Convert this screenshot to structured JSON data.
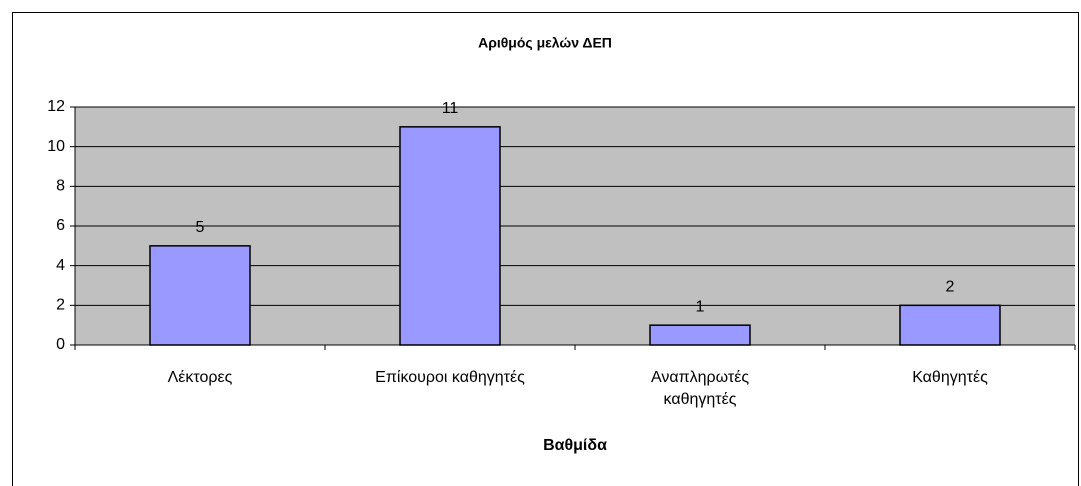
{
  "chart_data": {
    "type": "bar",
    "title": "Αριθμός μελών ΔΕΠ",
    "x_label": "Βαθμίδα",
    "categories": [
      "Λέκτορες",
      "Επίκουροι καθηγητές",
      "Αναπληρωτές καθηγητές",
      "Καθηγητές"
    ],
    "values": [
      5,
      11,
      1,
      2
    ],
    "color": "#9999ff",
    "ylim": [
      0,
      12
    ],
    "yticks": [
      0,
      2,
      4,
      6,
      8,
      10,
      12
    ],
    "grid": true
  }
}
